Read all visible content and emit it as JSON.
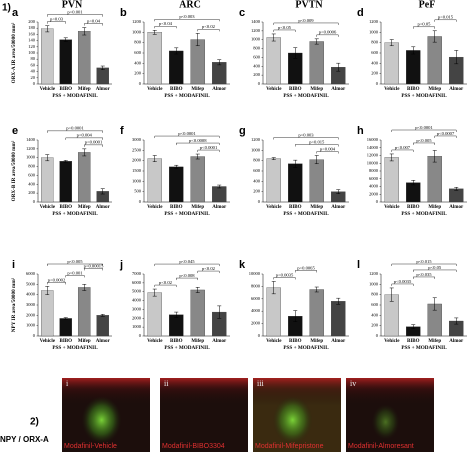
{
  "section1_label": "1)",
  "column_titles": [
    "PVN",
    "ARC",
    "PVTN",
    "PeF"
  ],
  "chart_data": [
    {
      "type": "bar",
      "panel": "a",
      "y_label": "ORX-A IR area/50000 mm²",
      "x_label": "PSS + MODAFINIL",
      "categories": [
        "Vehicle",
        "BIBO",
        "Mifep",
        "Almor"
      ],
      "values": [
        178,
        143,
        170,
        52
      ],
      "errors": [
        10,
        6,
        12,
        6
      ],
      "colors": [
        "#c8c8c8",
        "#111111",
        "#888888",
        "#444444"
      ],
      "ylim": [
        0,
        200
      ],
      "yticks": [
        0,
        20,
        40,
        60,
        80,
        100,
        120,
        140,
        160,
        180,
        200
      ],
      "annotations": [
        {
          "text": "p<0.03",
          "between": [
            0,
            1
          ]
        },
        {
          "text": "p<0.04",
          "between": [
            2,
            3
          ]
        },
        {
          "text": "p<0.001",
          "between": [
            0,
            3
          ]
        }
      ]
    },
    {
      "type": "bar",
      "panel": "b",
      "x_label": "PSS + MODAFINIL",
      "categories": [
        "Vehicle",
        "BIBO",
        "Mifep",
        "Almor"
      ],
      "values": [
        1000,
        640,
        860,
        420
      ],
      "errors": [
        40,
        60,
        120,
        50
      ],
      "colors": [
        "#c8c8c8",
        "#111111",
        "#888888",
        "#444444"
      ],
      "ylim": [
        0,
        1200
      ],
      "yticks": [
        0,
        200,
        400,
        600,
        800,
        1000,
        1200
      ],
      "annotations": [
        {
          "text": "p<0.04",
          "between": [
            0,
            1
          ]
        },
        {
          "text": "p<0.02",
          "between": [
            2,
            3
          ]
        },
        {
          "text": "p<0.003",
          "between": [
            0,
            3
          ]
        }
      ]
    },
    {
      "type": "bar",
      "panel": "c",
      "x_label": "PSS + MODAFINIL",
      "categories": [
        "Vehicle",
        "BIBO",
        "Mifep",
        "Almor"
      ],
      "values": [
        1050,
        700,
        960,
        380
      ],
      "errors": [
        80,
        120,
        60,
        90
      ],
      "colors": [
        "#c8c8c8",
        "#111111",
        "#888888",
        "#444444"
      ],
      "ylim": [
        0,
        1400
      ],
      "yticks": [
        0,
        200,
        400,
        600,
        800,
        1000,
        1200,
        1400
      ],
      "annotations": [
        {
          "text": "p<0.05",
          "between": [
            0,
            1
          ]
        },
        {
          "text": "p<0.0006",
          "between": [
            2,
            3
          ]
        },
        {
          "text": "p<0.009",
          "between": [
            0,
            3
          ]
        }
      ]
    },
    {
      "type": "bar",
      "panel": "d",
      "x_label": "PSS + MODAFINIL",
      "categories": [
        "Vehicle",
        "BIBO",
        "Mifep",
        "Almor"
      ],
      "values": [
        800,
        650,
        920,
        520
      ],
      "errors": [
        60,
        70,
        110,
        130
      ],
      "colors": [
        "#c8c8c8",
        "#111111",
        "#888888",
        "#444444"
      ],
      "ylim": [
        0,
        1200
      ],
      "yticks": [
        0,
        200,
        400,
        600,
        800,
        1000,
        1200
      ],
      "annotations": [
        {
          "text": "p<0.05",
          "between": [
            1,
            2
          ]
        },
        {
          "text": "p<0.015",
          "between": [
            2,
            3
          ]
        }
      ]
    },
    {
      "type": "bar",
      "panel": "e",
      "y_label": "ORX-B IR area/50000 mm²",
      "x_label": "PSS + MODAFINIL",
      "categories": [
        "Vehicle",
        "BIBO",
        "Mifep",
        "Almor"
      ],
      "values": [
        1000,
        920,
        1120,
        240
      ],
      "errors": [
        70,
        20,
        80,
        60
      ],
      "colors": [
        "#c8c8c8",
        "#111111",
        "#888888",
        "#444444"
      ],
      "ylim": [
        0,
        1400
      ],
      "yticks": [
        0,
        200,
        400,
        600,
        800,
        1000,
        1200,
        1400
      ],
      "annotations": [
        {
          "text": "p<0.0001",
          "between": [
            2,
            3
          ]
        },
        {
          "text": "p<0.004",
          "between": [
            1,
            3
          ]
        },
        {
          "text": "p<0.0001",
          "between": [
            0,
            3
          ]
        }
      ]
    },
    {
      "type": "bar",
      "panel": "f",
      "x_label": "PSS + MODAFINIL",
      "categories": [
        "Vehicle",
        "BIBO",
        "Mifep",
        "Almor"
      ],
      "values": [
        2100,
        1700,
        2200,
        750
      ],
      "errors": [
        150,
        80,
        120,
        70
      ],
      "colors": [
        "#c8c8c8",
        "#111111",
        "#888888",
        "#444444"
      ],
      "ylim": [
        0,
        3000
      ],
      "yticks": [
        0,
        500,
        1000,
        1500,
        2000,
        2500,
        3000
      ],
      "annotations": [
        {
          "text": "p<0.0001",
          "between": [
            2,
            3
          ]
        },
        {
          "text": "p<0.0008",
          "between": [
            1,
            3
          ]
        },
        {
          "text": "p<0.0001",
          "between": [
            0,
            3
          ]
        }
      ]
    },
    {
      "type": "bar",
      "panel": "g",
      "x_label": "PSS + MODAFINIL",
      "categories": [
        "Vehicle",
        "BIBO",
        "Mifep",
        "Almor"
      ],
      "values": [
        840,
        740,
        820,
        200
      ],
      "errors": [
        20,
        70,
        80,
        40
      ],
      "colors": [
        "#c8c8c8",
        "#111111",
        "#888888",
        "#444444"
      ],
      "ylim": [
        0,
        1200
      ],
      "yticks": [
        0,
        200,
        400,
        600,
        800,
        1000,
        1200
      ],
      "annotations": [
        {
          "text": "p<0.004",
          "between": [
            2,
            3
          ]
        },
        {
          "text": "p<0.015",
          "between": [
            1,
            3
          ]
        },
        {
          "text": "p<0.003",
          "between": [
            0,
            3
          ]
        }
      ]
    },
    {
      "type": "bar",
      "panel": "h",
      "x_label": "PSS + MODAFINIL",
      "categories": [
        "Vehicle",
        "BIBO",
        "Mifep",
        "Almor"
      ],
      "values": [
        11500,
        5000,
        11800,
        3400
      ],
      "errors": [
        900,
        600,
        1500,
        400
      ],
      "colors": [
        "#c8c8c8",
        "#111111",
        "#888888",
        "#444444"
      ],
      "ylim": [
        0,
        16000
      ],
      "yticks": [
        0,
        2000,
        4000,
        6000,
        8000,
        10000,
        12000,
        14000,
        16000
      ],
      "annotations": [
        {
          "text": "p<0.007",
          "between": [
            0,
            1
          ]
        },
        {
          "text": "p<0.005",
          "between": [
            1,
            2
          ]
        },
        {
          "text": "p<0.0007",
          "between": [
            2,
            3
          ]
        },
        {
          "text": "p<0.0001",
          "between": [
            0,
            3
          ]
        }
      ]
    },
    {
      "type": "bar",
      "panel": "i",
      "y_label": "NPY IR area/50000 mm²",
      "x_label": "PSS + MODAFINIL",
      "categories": [
        "Vehicle",
        "BIBO",
        "Mifep",
        "Almor"
      ],
      "values": [
        4400,
        1700,
        4700,
        2000
      ],
      "errors": [
        400,
        80,
        300,
        100
      ],
      "colors": [
        "#c8c8c8",
        "#111111",
        "#888888",
        "#444444"
      ],
      "ylim": [
        0,
        6000
      ],
      "yticks": [
        0,
        1000,
        2000,
        3000,
        4000,
        5000,
        6000
      ],
      "annotations": [
        {
          "text": "p<0.0002",
          "between": [
            0,
            1
          ]
        },
        {
          "text": "p<0.001",
          "between": [
            1,
            2
          ]
        },
        {
          "text": "p<0.00015",
          "between": [
            2,
            3
          ]
        },
        {
          "text": "p<0.005",
          "between": [
            0,
            3
          ]
        }
      ]
    },
    {
      "type": "bar",
      "panel": "j",
      "x_label": "PSS + MODAFINIL",
      "categories": [
        "Vehicle",
        "BIBO",
        "Mifep",
        "Almor"
      ],
      "values": [
        4900,
        2400,
        5200,
        2700
      ],
      "errors": [
        400,
        300,
        300,
        700
      ],
      "colors": [
        "#c8c8c8",
        "#111111",
        "#888888",
        "#444444"
      ],
      "ylim": [
        0,
        7000
      ],
      "yticks": [
        0,
        1000,
        2000,
        3000,
        4000,
        5000,
        6000,
        7000
      ],
      "annotations": [
        {
          "text": "p<0.02",
          "between": [
            0,
            1
          ]
        },
        {
          "text": "p<0.008",
          "between": [
            1,
            2
          ]
        },
        {
          "text": "p<0.02",
          "between": [
            2,
            3
          ]
        },
        {
          "text": "p<0.045",
          "between": [
            0,
            3
          ]
        }
      ]
    },
    {
      "type": "bar",
      "panel": "k",
      "x_label": "PSS + MODAFINIL",
      "categories": [
        "Vehicle",
        "BIBO",
        "Mifep",
        "Almor"
      ],
      "values": [
        7800,
        3200,
        7500,
        5600
      ],
      "errors": [
        1000,
        900,
        400,
        500
      ],
      "colors": [
        "#c8c8c8",
        "#111111",
        "#888888",
        "#444444"
      ],
      "ylim": [
        0,
        10000
      ],
      "yticks": [
        0,
        2000,
        4000,
        6000,
        8000,
        10000
      ],
      "annotations": [
        {
          "text": "p<0.0035",
          "between": [
            0,
            1
          ]
        },
        {
          "text": "p<0.0065",
          "between": [
            1,
            2
          ]
        }
      ]
    },
    {
      "type": "bar",
      "panel": "l",
      "x_label": "PSS + MODAFINIL",
      "categories": [
        "Vehicle",
        "BIBO",
        "Mifep",
        "Almor"
      ],
      "values": [
        800,
        180,
        620,
        290
      ],
      "errors": [
        130,
        40,
        120,
        60
      ],
      "colors": [
        "#c8c8c8",
        "#111111",
        "#888888",
        "#444444"
      ],
      "ylim": [
        0,
        1200
      ],
      "yticks": [
        0,
        200,
        400,
        600,
        800,
        1000,
        1200
      ],
      "annotations": [
        {
          "text": "p<0.0035",
          "between": [
            0,
            1
          ]
        },
        {
          "text": "p<0.035",
          "between": [
            1,
            2
          ]
        },
        {
          "text": "p<0.05",
          "between": [
            1,
            3
          ]
        },
        {
          "text": "p<0.015",
          "between": [
            0,
            3
          ]
        }
      ]
    }
  ],
  "section2": {
    "label": "2)",
    "side_label": "NPY / ORX-A",
    "panels": [
      {
        "numeral": "i",
        "caption": "Modafinil-Vehicle"
      },
      {
        "numeral": "ii",
        "caption": "Modafinil-BIBO3304"
      },
      {
        "numeral": "iii",
        "caption": "Modafinil-Mifepristone"
      },
      {
        "numeral": "iv",
        "caption": "Modafinil-Almoresant"
      }
    ]
  }
}
